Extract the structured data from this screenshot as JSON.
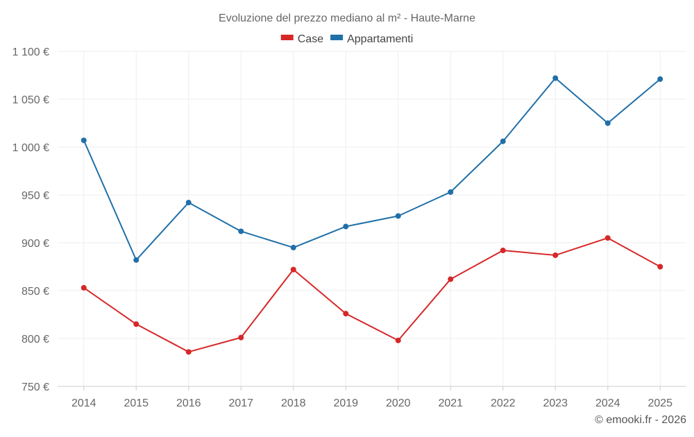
{
  "chart_data": {
    "type": "line",
    "title": "Evoluzione del prezzo mediano al m² - Haute-Marne",
    "categories": [
      "2014",
      "2015",
      "2016",
      "2017",
      "2018",
      "2019",
      "2020",
      "2021",
      "2022",
      "2023",
      "2024",
      "2025"
    ],
    "series": [
      {
        "name": "Case",
        "color": "#d62728",
        "values": [
          853,
          815,
          786,
          801,
          872,
          826,
          798,
          862,
          892,
          887,
          905,
          875
        ]
      },
      {
        "name": "Appartamenti",
        "color": "#1f6fa8",
        "values": [
          1007,
          882,
          942,
          912,
          895,
          917,
          928,
          953,
          1006,
          1072,
          1025,
          1071
        ]
      }
    ],
    "ylim": [
      750,
      1100
    ],
    "yticks": [
      750,
      800,
      850,
      900,
      950,
      1000,
      1050,
      1100
    ],
    "ytick_labels": [
      "750 €",
      "800 €",
      "850 €",
      "900 €",
      "950 €",
      "1 000 €",
      "1 050 €",
      "1 100 €"
    ],
    "xlabel": "",
    "ylabel": "",
    "grid": true,
    "legend_position": "top-center"
  },
  "credit": "© emooki.fr - 2026"
}
